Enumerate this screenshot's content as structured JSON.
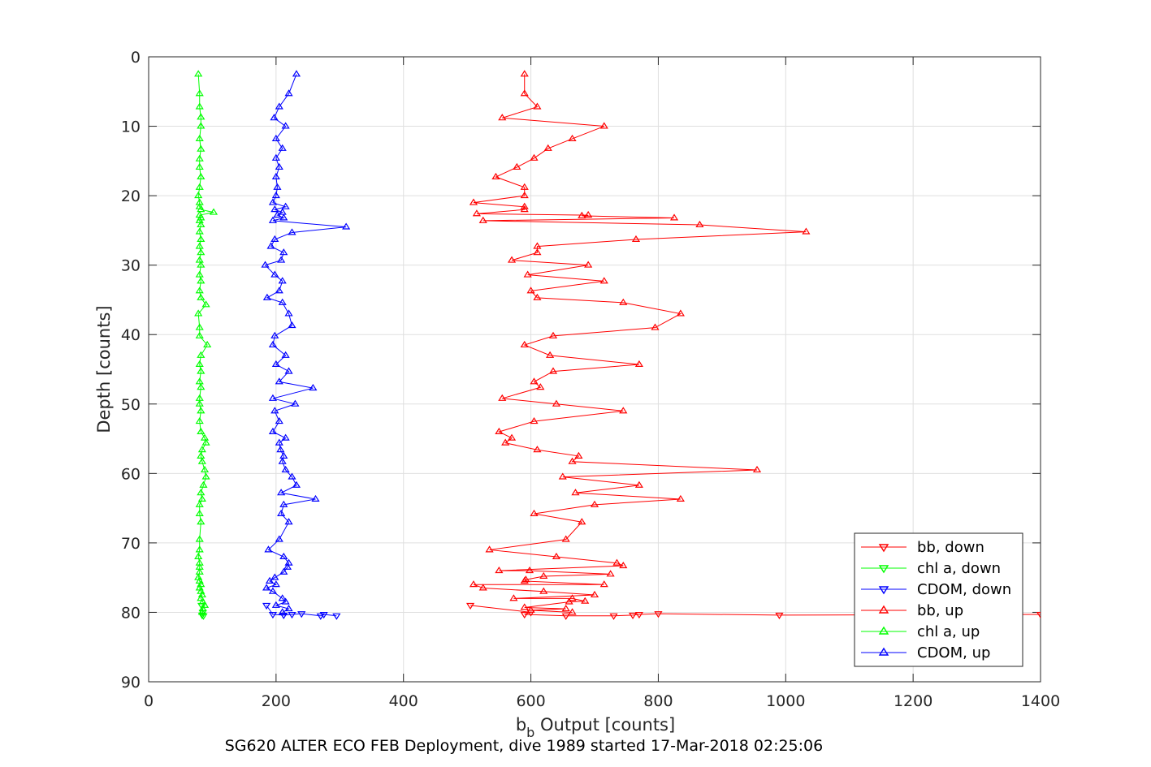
{
  "chart_data": {
    "type": "line",
    "title": "",
    "xlabel_base": "b",
    "xlabel_sub": "b",
    "xlabel_rest": " Output [counts]",
    "ylabel": "Depth [counts]",
    "caption": "SG620 ALTER ECO FEB Deployment, dive 1989 started 17-Mar-2018 02:25:06",
    "xlim": [
      0,
      1400
    ],
    "ylim": [
      0,
      90
    ],
    "y_reversed": true,
    "grid": true,
    "legend_position": "bottom-right",
    "xticks": [
      "0",
      "200",
      "400",
      "600",
      "800",
      "1000",
      "1200",
      "1400"
    ],
    "yticks": [
      "0",
      "10",
      "20",
      "30",
      "40",
      "50",
      "60",
      "70",
      "80",
      "90"
    ],
    "colors": {
      "red": "#ff0000",
      "green": "#00ff00",
      "blue": "#0000ff",
      "axis": "#262626",
      "grid": "#dfdfdf"
    },
    "series": [
      {
        "name": "bb, down",
        "color": "#ff0000",
        "marker": "triangle-down",
        "points": [
          [
            505,
            79.0
          ],
          [
            600,
            80.0
          ],
          [
            590,
            80.3
          ],
          [
            655,
            80.5
          ],
          [
            730,
            80.5
          ],
          [
            760,
            80.4
          ],
          [
            770,
            80.3
          ],
          [
            800,
            80.2
          ],
          [
            990,
            80.4
          ],
          [
            1400,
            80.3
          ]
        ]
      },
      {
        "name": "chl a, down",
        "color": "#00ff00",
        "marker": "triangle-down",
        "points": [
          [
            83,
            79.0
          ],
          [
            85,
            80.0
          ],
          [
            84,
            80.4
          ],
          [
            86,
            80.5
          ]
        ]
      },
      {
        "name": "CDOM, down",
        "color": "#0000ff",
        "marker": "triangle-down",
        "points": [
          [
            185,
            79.0
          ],
          [
            195,
            80.3
          ],
          [
            212,
            80.4
          ],
          [
            225,
            80.3
          ],
          [
            240,
            80.2
          ],
          [
            270,
            80.5
          ],
          [
            275,
            80.3
          ],
          [
            295,
            80.5
          ]
        ]
      },
      {
        "name": "bb, up",
        "color": "#ff0000",
        "marker": "triangle-up",
        "points": [
          [
            590,
            2.5
          ],
          [
            590,
            5.3
          ],
          [
            610,
            7.2
          ],
          [
            555,
            8.8
          ],
          [
            715,
            10.0
          ],
          [
            665,
            11.8
          ],
          [
            627,
            13.2
          ],
          [
            605,
            14.6
          ],
          [
            578,
            15.9
          ],
          [
            545,
            17.3
          ],
          [
            590,
            18.8
          ],
          [
            590,
            20.0
          ],
          [
            510,
            21.0
          ],
          [
            590,
            21.6
          ],
          [
            590,
            22.0
          ],
          [
            515,
            22.6
          ],
          [
            690,
            22.8
          ],
          [
            680,
            22.9
          ],
          [
            825,
            23.2
          ],
          [
            525,
            23.6
          ],
          [
            865,
            24.2
          ],
          [
            1032,
            25.2
          ],
          [
            765,
            26.3
          ],
          [
            610,
            27.3
          ],
          [
            610,
            28.2
          ],
          [
            570,
            29.3
          ],
          [
            690,
            30.0
          ],
          [
            595,
            31.4
          ],
          [
            715,
            32.3
          ],
          [
            600,
            33.7
          ],
          [
            610,
            34.7
          ],
          [
            745,
            35.4
          ],
          [
            835,
            37.0
          ],
          [
            795,
            39.0
          ],
          [
            635,
            40.2
          ],
          [
            590,
            41.5
          ],
          [
            630,
            43.0
          ],
          [
            770,
            44.3
          ],
          [
            635,
            45.3
          ],
          [
            605,
            46.8
          ],
          [
            615,
            47.6
          ],
          [
            555,
            49.2
          ],
          [
            640,
            50.0
          ],
          [
            745,
            51.0
          ],
          [
            605,
            52.5
          ],
          [
            550,
            54.0
          ],
          [
            570,
            54.9
          ],
          [
            560,
            55.6
          ],
          [
            610,
            56.6
          ],
          [
            675,
            57.5
          ],
          [
            665,
            58.3
          ],
          [
            955,
            59.5
          ],
          [
            650,
            60.5
          ],
          [
            770,
            61.7
          ],
          [
            670,
            62.8
          ],
          [
            835,
            63.7
          ],
          [
            700,
            64.5
          ],
          [
            605,
            65.8
          ],
          [
            680,
            67.0
          ],
          [
            655,
            69.5
          ],
          [
            535,
            71.0
          ],
          [
            640,
            72.0
          ],
          [
            735,
            72.9
          ],
          [
            745,
            73.3
          ],
          [
            550,
            74.0
          ],
          [
            598,
            74.0
          ],
          [
            725,
            74.5
          ],
          [
            620,
            74.8
          ],
          [
            592,
            75.3
          ],
          [
            590,
            75.5
          ],
          [
            715,
            76.0
          ],
          [
            510,
            76.0
          ],
          [
            525,
            76.5
          ],
          [
            620,
            77.0
          ],
          [
            700,
            77.5
          ],
          [
            573,
            78.0
          ],
          [
            665,
            78.0
          ],
          [
            685,
            78.4
          ],
          [
            660,
            78.5
          ],
          [
            590,
            79.3
          ],
          [
            655,
            79.5
          ],
          [
            600,
            79.7
          ],
          [
            665,
            80.0
          ]
        ]
      },
      {
        "name": "chl a, up",
        "color": "#00ff00",
        "marker": "triangle-up",
        "points": [
          [
            78,
            2.5
          ],
          [
            80,
            5.3
          ],
          [
            80,
            7.2
          ],
          [
            82,
            8.7
          ],
          [
            82,
            10.0
          ],
          [
            80,
            11.8
          ],
          [
            82,
            13.3
          ],
          [
            80,
            14.7
          ],
          [
            80,
            15.9
          ],
          [
            82,
            17.3
          ],
          [
            80,
            18.8
          ],
          [
            78,
            20.0
          ],
          [
            80,
            21.0
          ],
          [
            80,
            21.6
          ],
          [
            82,
            22.0
          ],
          [
            102,
            22.4
          ],
          [
            80,
            22.8
          ],
          [
            82,
            23.2
          ],
          [
            80,
            23.6
          ],
          [
            82,
            24.2
          ],
          [
            80,
            25.2
          ],
          [
            82,
            26.3
          ],
          [
            80,
            27.3
          ],
          [
            82,
            28.2
          ],
          [
            80,
            29.3
          ],
          [
            82,
            30.0
          ],
          [
            80,
            31.4
          ],
          [
            82,
            32.3
          ],
          [
            80,
            33.7
          ],
          [
            82,
            34.7
          ],
          [
            90,
            35.7
          ],
          [
            78,
            37.0
          ],
          [
            80,
            39.0
          ],
          [
            80,
            40.2
          ],
          [
            92,
            41.5
          ],
          [
            82,
            43.0
          ],
          [
            80,
            44.3
          ],
          [
            82,
            45.3
          ],
          [
            80,
            46.8
          ],
          [
            82,
            47.6
          ],
          [
            80,
            49.2
          ],
          [
            80,
            50.0
          ],
          [
            82,
            51.0
          ],
          [
            80,
            52.5
          ],
          [
            82,
            54.0
          ],
          [
            88,
            54.9
          ],
          [
            90,
            55.6
          ],
          [
            84,
            56.6
          ],
          [
            82,
            57.5
          ],
          [
            84,
            58.3
          ],
          [
            88,
            59.5
          ],
          [
            90,
            60.5
          ],
          [
            86,
            61.7
          ],
          [
            82,
            62.8
          ],
          [
            84,
            63.7
          ],
          [
            80,
            64.5
          ],
          [
            80,
            65.8
          ],
          [
            82,
            67.0
          ],
          [
            80,
            69.5
          ],
          [
            80,
            71.0
          ],
          [
            78,
            72.0
          ],
          [
            80,
            72.9
          ],
          [
            80,
            73.5
          ],
          [
            80,
            74.2
          ],
          [
            78,
            75.0
          ],
          [
            80,
            75.5
          ],
          [
            82,
            76.0
          ],
          [
            80,
            76.5
          ],
          [
            82,
            77.0
          ],
          [
            84,
            77.5
          ],
          [
            82,
            78.0
          ],
          [
            85,
            78.5
          ],
          [
            88,
            79.0
          ],
          [
            85,
            79.5
          ],
          [
            84,
            80.0
          ]
        ]
      },
      {
        "name": "CDOM, up",
        "color": "#0000ff",
        "marker": "triangle-up",
        "points": [
          [
            232,
            2.5
          ],
          [
            220,
            5.3
          ],
          [
            205,
            7.2
          ],
          [
            197,
            8.8
          ],
          [
            215,
            10.0
          ],
          [
            200,
            11.8
          ],
          [
            210,
            13.2
          ],
          [
            200,
            14.6
          ],
          [
            205,
            15.9
          ],
          [
            200,
            17.3
          ],
          [
            202,
            18.8
          ],
          [
            200,
            20.0
          ],
          [
            195,
            21.0
          ],
          [
            215,
            21.6
          ],
          [
            198,
            22.0
          ],
          [
            210,
            22.4
          ],
          [
            202,
            22.8
          ],
          [
            212,
            23.2
          ],
          [
            195,
            23.6
          ],
          [
            310,
            24.5
          ],
          [
            225,
            25.3
          ],
          [
            198,
            26.3
          ],
          [
            192,
            27.3
          ],
          [
            212,
            28.2
          ],
          [
            208,
            29.3
          ],
          [
            183,
            30.0
          ],
          [
            198,
            31.4
          ],
          [
            210,
            32.3
          ],
          [
            205,
            33.7
          ],
          [
            186,
            34.7
          ],
          [
            210,
            35.4
          ],
          [
            220,
            37.0
          ],
          [
            225,
            38.7
          ],
          [
            198,
            40.2
          ],
          [
            195,
            41.5
          ],
          [
            215,
            43.0
          ],
          [
            200,
            44.3
          ],
          [
            220,
            45.3
          ],
          [
            205,
            46.8
          ],
          [
            258,
            47.7
          ],
          [
            195,
            49.2
          ],
          [
            230,
            50.0
          ],
          [
            198,
            51.0
          ],
          [
            205,
            52.5
          ],
          [
            195,
            54.0
          ],
          [
            215,
            54.9
          ],
          [
            205,
            55.6
          ],
          [
            207,
            56.6
          ],
          [
            212,
            57.5
          ],
          [
            210,
            58.3
          ],
          [
            215,
            59.5
          ],
          [
            225,
            60.5
          ],
          [
            232,
            61.7
          ],
          [
            208,
            62.8
          ],
          [
            262,
            63.7
          ],
          [
            212,
            64.5
          ],
          [
            208,
            65.8
          ],
          [
            220,
            67.0
          ],
          [
            205,
            69.5
          ],
          [
            188,
            71.0
          ],
          [
            212,
            72.0
          ],
          [
            220,
            72.9
          ],
          [
            218,
            73.5
          ],
          [
            212,
            74.2
          ],
          [
            198,
            75.0
          ],
          [
            190,
            75.5
          ],
          [
            200,
            76.0
          ],
          [
            185,
            76.5
          ],
          [
            195,
            77.0
          ],
          [
            210,
            78.0
          ],
          [
            215,
            78.5
          ],
          [
            200,
            79.0
          ],
          [
            220,
            79.5
          ],
          [
            210,
            80.0
          ]
        ]
      }
    ]
  }
}
